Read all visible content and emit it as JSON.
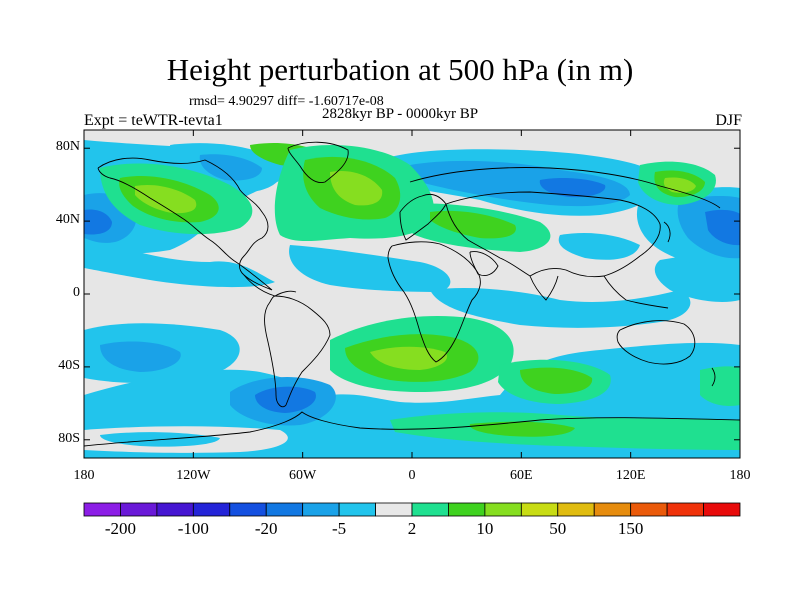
{
  "title": "Height perturbation at 500 hPa (in m)",
  "stats_text": "rmsd= 4.90297 diff= -1.60717e-08",
  "period": "2828kyr BP - 0000kyr BP",
  "experiment": "Expt = teWTR-tevta1",
  "season": "DJF",
  "lat_ticks": [
    "80N",
    "40N",
    "0",
    "40S",
    "80S"
  ],
  "lon_ticks": [
    "180",
    "120W",
    "60W",
    "0",
    "60E",
    "120E",
    "180"
  ],
  "colorbar": {
    "colors": [
      "#8c1ee6",
      "#6a19d8",
      "#4616d2",
      "#2424d8",
      "#1450e0",
      "#1278e2",
      "#1aa2e8",
      "#22c4ec",
      "#e8e8e8",
      "#1fe090",
      "#3fd21f",
      "#86de20",
      "#c8dc14",
      "#e0bc10",
      "#e68c0e",
      "#ea5a0a",
      "#f0320a",
      "#e80a0a"
    ],
    "labels": [
      "-200",
      "-100",
      "-20",
      "-5",
      "2",
      "10",
      "50",
      "150"
    ]
  },
  "colors": {
    "neutral": "#e6e6e6",
    "neg1": "#22c4ec",
    "neg2": "#1aa2e8",
    "neg3": "#1278e2",
    "neg4": "#1450e0",
    "pos1": "#1fe090",
    "pos2": "#3fd21f",
    "pos3": "#86de20",
    "pos4": "#c8dc14"
  }
}
